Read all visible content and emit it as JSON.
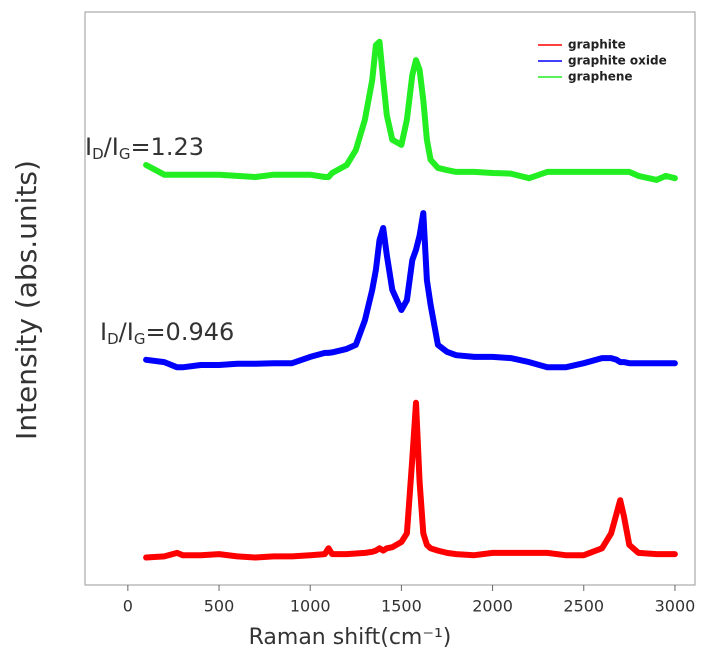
{
  "chart_data": {
    "type": "line",
    "xlabel": "Raman shift(cm⁻¹)",
    "ylabel": "Intensity (abs.units)",
    "x": [
      100,
      200,
      270,
      300,
      400,
      500,
      600,
      700,
      800,
      900,
      1000,
      1080,
      1100,
      1120,
      1200,
      1250,
      1300,
      1340,
      1360,
      1380,
      1400,
      1420,
      1450,
      1500,
      1530,
      1560,
      1580,
      1600,
      1620,
      1640,
      1660,
      1700,
      1750,
      1800,
      1900,
      2000,
      2100,
      2200,
      2300,
      2400,
      2500,
      2600,
      2650,
      2680,
      2700,
      2720,
      2750,
      2800,
      2900,
      2950,
      3000
    ],
    "series": [
      {
        "name": "graphite",
        "color": "#ff0000",
        "values": [
          4.8,
          5.0,
          5.6,
          5.2,
          5.2,
          5.4,
          5.0,
          4.8,
          5.0,
          5.0,
          5.2,
          5.4,
          6.4,
          5.4,
          5.4,
          5.5,
          5.6,
          5.8,
          6.0,
          6.4,
          6.0,
          6.4,
          6.6,
          7.5,
          9,
          22,
          31.8,
          18,
          9,
          7,
          6.4,
          6.0,
          5.6,
          5.4,
          5.2,
          5.6,
          5.6,
          5.6,
          5.6,
          5.2,
          5.2,
          6.4,
          9,
          12.5,
          14.8,
          12,
          7,
          5.6,
          5.4,
          5.4,
          5.4
        ]
      },
      {
        "name": "graphite oxide",
        "color": "#0000ff",
        "values": [
          39.3,
          38.9,
          38.0,
          38.0,
          38.4,
          38.4,
          38.6,
          38.6,
          38.7,
          38.7,
          39.8,
          40.5,
          40.5,
          40.6,
          41.2,
          41.9,
          46.2,
          51.5,
          55,
          60.2,
          62.3,
          57.6,
          51.5,
          48,
          49.7,
          56.7,
          58.5,
          61,
          64.9,
          53.2,
          48.9,
          41.9,
          40.7,
          40.1,
          39.8,
          39.8,
          39.6,
          38.9,
          38.0,
          38.0,
          38.7,
          39.6,
          39.6,
          39.3,
          38.9,
          38.9,
          38.7,
          38.7,
          38.7,
          38.7,
          38.7
        ]
      },
      {
        "name": "graphene",
        "color": "#22ee22",
        "values": [
          73.3,
          71.6,
          71.6,
          71.6,
          71.6,
          71.6,
          71.4,
          71.2,
          71.6,
          71.6,
          71.6,
          71.2,
          71.2,
          71.9,
          73.3,
          75.9,
          81.2,
          88.1,
          94.2,
          94.8,
          88.1,
          82,
          77.7,
          76.8,
          81.2,
          89,
          91.6,
          89.9,
          84.6,
          77.7,
          74.2,
          72.8,
          72.4,
          72.1,
          72.1,
          71.9,
          71.8,
          71,
          72.1,
          72.1,
          72.1,
          72.1,
          72.1,
          72.1,
          72.1,
          72.1,
          72.1,
          71.4,
          70.7,
          71.4,
          71
        ]
      }
    ],
    "annotations": [
      {
        "parts": [
          "I",
          "D",
          "/I",
          "G",
          "=1.23"
        ]
      },
      {
        "parts": [
          "I",
          "D",
          "/I",
          "G",
          "=0.946"
        ]
      }
    ],
    "xlim": [
      -235,
      3110
    ],
    "xticks": [
      0,
      500,
      1000,
      1500,
      2000,
      2500,
      3000
    ],
    "ylim": [
      0,
      100
    ],
    "legend": "upper right"
  }
}
